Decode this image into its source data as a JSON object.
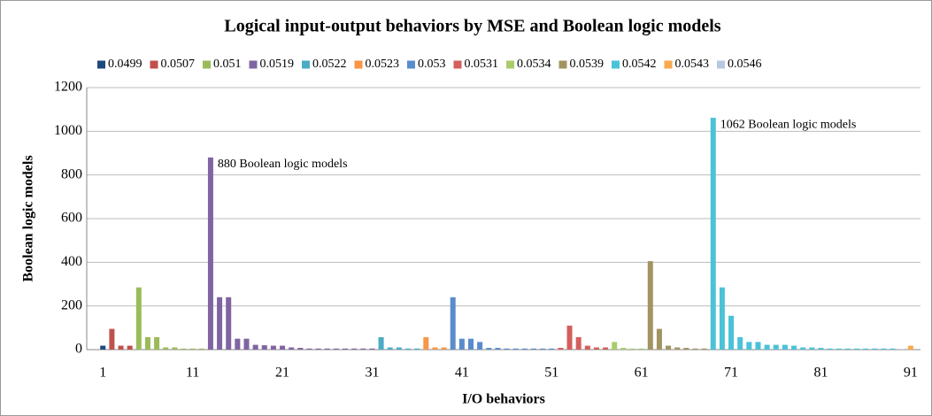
{
  "chart_data": {
    "type": "bar",
    "title": "Logical input-output behaviors by MSE and Boolean logic models",
    "x_label": "I/O behaviors",
    "y_label": "Boolean logic models",
    "xlim": [
      -0.8,
      92.1
    ],
    "xticks": [
      1,
      11,
      21,
      31,
      41,
      51,
      61,
      71,
      81,
      91
    ],
    "ylim": [
      0,
      1200
    ],
    "yticks": [
      0,
      200,
      400,
      600,
      800,
      1000,
      1200
    ],
    "grid": true,
    "legend": "top",
    "series": [
      {
        "name": "0.0499",
        "color": "#1f497d",
        "x": [
          1
        ],
        "values": [
          18
        ]
      },
      {
        "name": "0.0507",
        "color": "#c0504d",
        "x": [
          2,
          3,
          4
        ],
        "values": [
          95,
          18,
          18
        ]
      },
      {
        "name": "0.051",
        "color": "#9bbb59",
        "x": [
          5,
          6,
          7,
          8,
          9,
          10,
          11,
          12
        ],
        "values": [
          285,
          57,
          57,
          10,
          10,
          5,
          5,
          5
        ]
      },
      {
        "name": "0.0519",
        "color": "#8064a2",
        "x": [
          13,
          14,
          15,
          16,
          17,
          18,
          19,
          20,
          21,
          22,
          23,
          24,
          25,
          26,
          27,
          28,
          29,
          30,
          31
        ],
        "values": [
          880,
          240,
          240,
          50,
          50,
          22,
          20,
          18,
          18,
          10,
          8,
          5,
          5,
          5,
          5,
          5,
          5,
          5,
          5
        ]
      },
      {
        "name": "0.0522",
        "color": "#4bacc6",
        "x": [
          32,
          33,
          34,
          35,
          36
        ],
        "values": [
          57,
          10,
          10,
          5,
          5
        ]
      },
      {
        "name": "0.0523",
        "color": "#f79646",
        "x": [
          37,
          38,
          39
        ],
        "values": [
          57,
          10,
          10
        ]
      },
      {
        "name": "0.053",
        "color": "#5a8ccc",
        "x": [
          40,
          41,
          42,
          43,
          44,
          45,
          46,
          47,
          48,
          49,
          50,
          51
        ],
        "values": [
          240,
          50,
          50,
          35,
          8,
          8,
          5,
          5,
          5,
          5,
          5,
          5
        ]
      },
      {
        "name": "0.0531",
        "color": "#d35f5c",
        "x": [
          52,
          53,
          54,
          55,
          56,
          57
        ],
        "values": [
          8,
          110,
          57,
          18,
          10,
          10
        ]
      },
      {
        "name": "0.0534",
        "color": "#a9cc6b",
        "x": [
          58,
          59,
          60,
          61
        ],
        "values": [
          35,
          8,
          5,
          5
        ]
      },
      {
        "name": "0.0539",
        "color": "#a29462",
        "x": [
          62,
          63,
          64,
          65,
          66,
          67,
          68
        ],
        "values": [
          405,
          95,
          18,
          10,
          8,
          5,
          5
        ]
      },
      {
        "name": "0.0542",
        "color": "#4bc2d8",
        "x": [
          69,
          70,
          71,
          72,
          73,
          74,
          75,
          76,
          77,
          78,
          79,
          80,
          81,
          82,
          83,
          84,
          85,
          86,
          87,
          88,
          89
        ],
        "values": [
          1062,
          285,
          155,
          57,
          35,
          35,
          22,
          22,
          22,
          18,
          10,
          10,
          8,
          5,
          5,
          5,
          5,
          5,
          5,
          5,
          5
        ]
      },
      {
        "name": "0.0543",
        "color": "#f9a84e",
        "x": [
          91
        ],
        "values": [
          18
        ]
      },
      {
        "name": "0.0546",
        "color": "#b9c7e4",
        "x": [
          90
        ],
        "values": [
          3
        ]
      }
    ],
    "annotations": [
      {
        "text": "880 Boolean logic models",
        "x": 13,
        "y": 880
      },
      {
        "text": "1062 Boolean logic models",
        "x": 69,
        "y": 1062
      }
    ]
  }
}
